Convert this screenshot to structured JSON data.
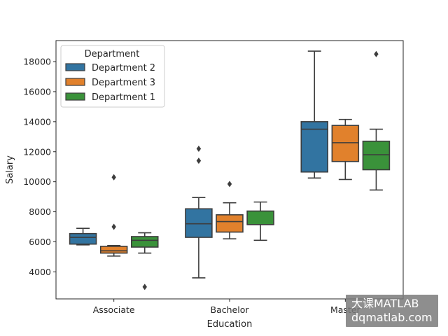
{
  "chart_data": {
    "type": "box",
    "title": "",
    "xlabel": "Education",
    "ylabel": "Salary",
    "categories": [
      "Associate",
      "Bachelor",
      "Master"
    ],
    "ylim": [
      2200,
      19400
    ],
    "yticks": [
      4000,
      6000,
      8000,
      10000,
      12000,
      14000,
      16000,
      18000
    ],
    "legend": {
      "title": "Department",
      "position": "upper-left"
    },
    "series": [
      {
        "name": "Department 2",
        "color": "#3274a1",
        "boxes": [
          {
            "category": "Associate",
            "whislo": 5800,
            "q1": 5850,
            "med": 6300,
            "q3": 6550,
            "whishi": 6900,
            "fliers": []
          },
          {
            "category": "Bachelor",
            "whislo": 3600,
            "q1": 6300,
            "med": 7200,
            "q3": 8200,
            "whishi": 8950,
            "fliers": [
              11400,
              12200
            ]
          },
          {
            "category": "Master",
            "whislo": 10250,
            "q1": 10650,
            "med": 13500,
            "q3": 14000,
            "whishi": 18700,
            "fliers": []
          }
        ]
      },
      {
        "name": "Department 3",
        "color": "#e1812c",
        "boxes": [
          {
            "category": "Associate",
            "whislo": 5050,
            "q1": 5250,
            "med": 5400,
            "q3": 5700,
            "whishi": 5750,
            "fliers": [
              7000,
              10300
            ]
          },
          {
            "category": "Bachelor",
            "whislo": 6200,
            "q1": 6650,
            "med": 7350,
            "q3": 7800,
            "whishi": 8600,
            "fliers": [
              9850
            ]
          },
          {
            "category": "Master",
            "whislo": 10150,
            "q1": 11350,
            "med": 12600,
            "q3": 13750,
            "whishi": 14150,
            "fliers": []
          }
        ]
      },
      {
        "name": "Department 1",
        "color": "#3a923a",
        "boxes": [
          {
            "category": "Associate",
            "whislo": 5250,
            "q1": 5650,
            "med": 6100,
            "q3": 6350,
            "whishi": 6600,
            "fliers": [
              3000
            ]
          },
          {
            "category": "Bachelor",
            "whislo": 6100,
            "q1": 7150,
            "med": 7150,
            "q3": 8050,
            "whishi": 8650,
            "fliers": []
          },
          {
            "category": "Master",
            "whislo": 9450,
            "q1": 10800,
            "med": 11800,
            "q3": 12700,
            "whishi": 13500,
            "fliers": [
              18500
            ]
          }
        ]
      }
    ]
  },
  "watermark": {
    "line1": "大课MATLAB",
    "line2": "dqmatlab.com"
  }
}
